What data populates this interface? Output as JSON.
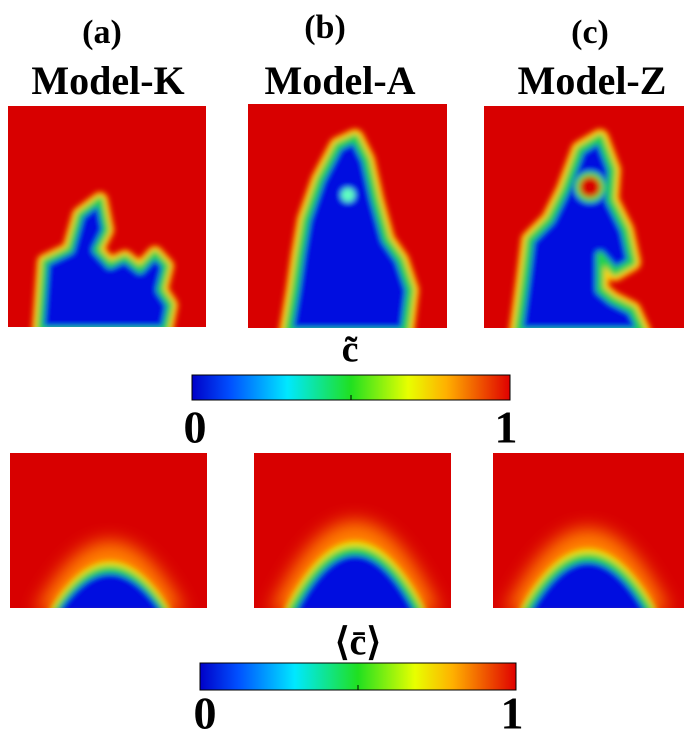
{
  "panels": [
    {
      "label": "(a)",
      "title": "Model-K"
    },
    {
      "label": "(b)",
      "title": "Model-A"
    },
    {
      "label": "(c)",
      "title": "Model-Z"
    }
  ],
  "colorbars": [
    {
      "symbol": "c̃",
      "ticks": [
        0,
        1
      ]
    },
    {
      "symbol": "⟨c̄⟩",
      "ticks": [
        0,
        1
      ]
    }
  ]
}
